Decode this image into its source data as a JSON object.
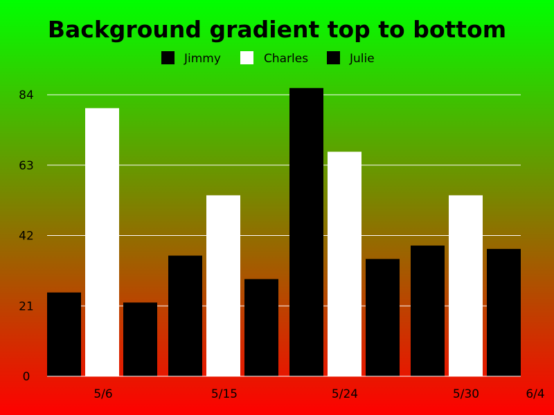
{
  "chart_data": {
    "type": "bar",
    "title": "Background gradient top to bottom",
    "categories": [
      "5/6",
      "5/15",
      "5/24",
      "5/30"
    ],
    "x_tick_labels": [
      "5/6",
      "5/15",
      "5/24",
      "5/30",
      "6/4"
    ],
    "series": [
      {
        "name": "Jimmy",
        "color": "#000000",
        "values": [
          25,
          36,
          86,
          39
        ]
      },
      {
        "name": "Charles",
        "color": "#ffffff",
        "values": [
          80,
          54,
          67,
          54
        ]
      },
      {
        "name": "Julie",
        "color": "#000000",
        "values": [
          22,
          29,
          35,
          38
        ]
      }
    ],
    "ylim": [
      0,
      84
    ],
    "yticks": [
      0,
      21,
      42,
      63,
      84
    ],
    "grid": true,
    "legend_position": "top-center",
    "background": {
      "from": "#00ff00",
      "to": "#ff0000",
      "direction": "top-to-bottom"
    }
  }
}
